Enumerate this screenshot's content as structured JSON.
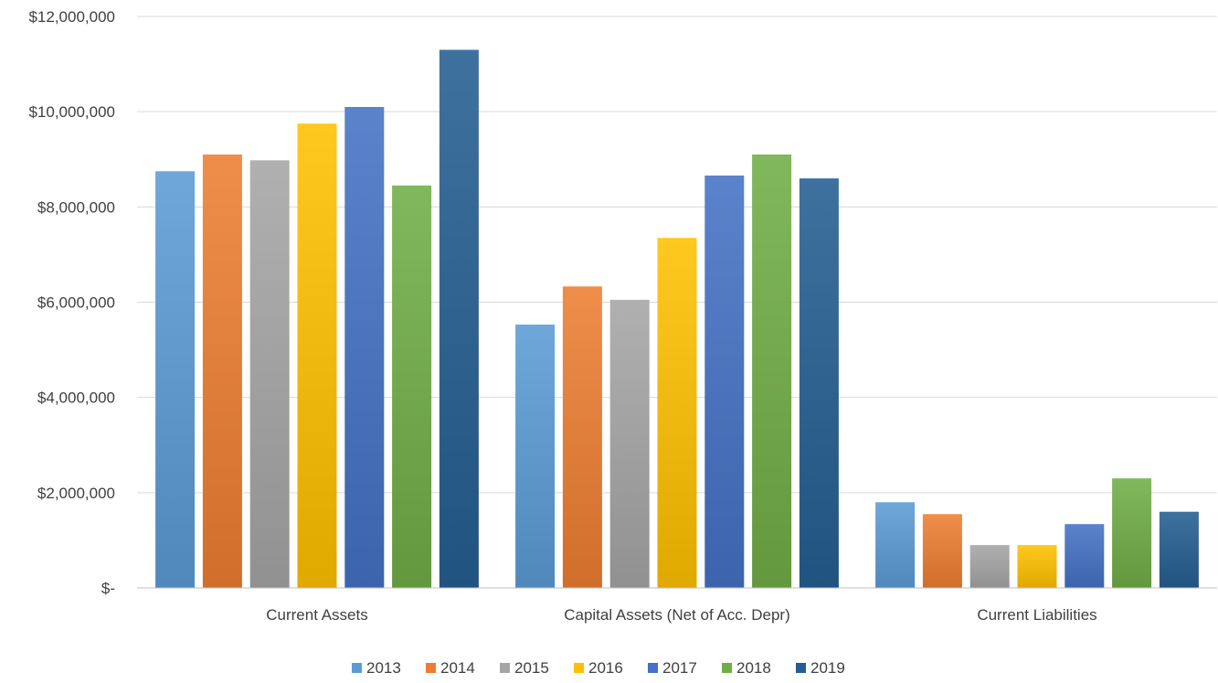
{
  "chart_data": {
    "type": "bar",
    "title": "",
    "xlabel": "",
    "ylabel": "",
    "ylim": [
      0,
      12000000
    ],
    "yticks": [
      {
        "value": 0,
        "label": "$-"
      },
      {
        "value": 2000000,
        "label": "$2,000,000"
      },
      {
        "value": 4000000,
        "label": "$4,000,000"
      },
      {
        "value": 6000000,
        "label": "$6,000,000"
      },
      {
        "value": 8000000,
        "label": "$8,000,000"
      },
      {
        "value": 10000000,
        "label": "$10,000,000"
      },
      {
        "value": 12000000,
        "label": "$12,000,000"
      }
    ],
    "grid": true,
    "legend_position": "bottom",
    "categories": [
      "Current Assets",
      "Capital Assets (Net of Acc. Depr)",
      "Current Liabilities"
    ],
    "series": [
      {
        "name": "2013",
        "color": "#5b9bd5",
        "values": [
          8750000,
          5530000,
          1800000
        ]
      },
      {
        "name": "2014",
        "color": "#ed7d31",
        "values": [
          9100000,
          6330000,
          1550000
        ]
      },
      {
        "name": "2015",
        "color": "#a5a5a5",
        "values": [
          8980000,
          6050000,
          900000
        ]
      },
      {
        "name": "2016",
        "color": "#ffc000",
        "values": [
          9750000,
          7350000,
          900000
        ]
      },
      {
        "name": "2017",
        "color": "#4472c4",
        "values": [
          10100000,
          8660000,
          1340000
        ]
      },
      {
        "name": "2018",
        "color": "#70ad47",
        "values": [
          8450000,
          9100000,
          2300000
        ]
      },
      {
        "name": "2019",
        "color": "#255e91",
        "values": [
          11300000,
          8600000,
          1600000
        ]
      }
    ]
  }
}
